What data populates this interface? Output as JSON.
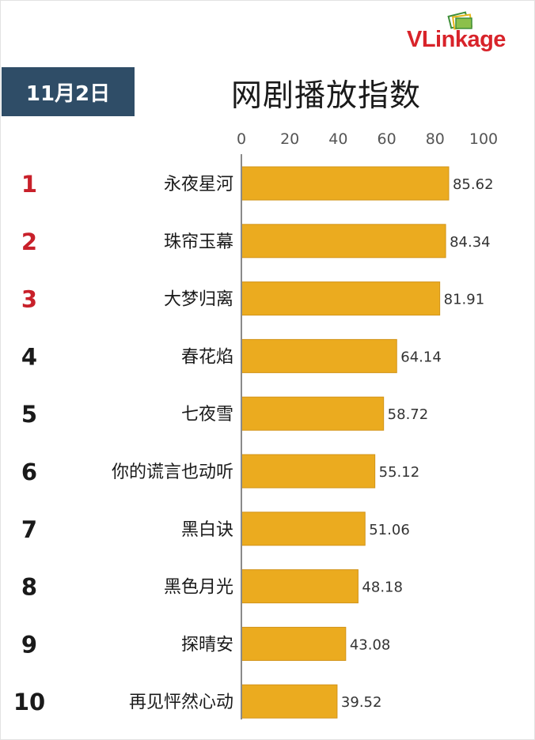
{
  "header": {
    "date": "11月2日",
    "title": "网剧播放指数",
    "logo_main": "VLink",
    "logo_sub": "age"
  },
  "colors": {
    "bar": "#ebab1f",
    "bar_edge": "#d2941a",
    "badge": "#2f4d67",
    "rank_top": "#c8202a",
    "rank_other": "#1a1a1a",
    "axis": "#8a8a8a"
  },
  "chart_data": {
    "type": "bar",
    "orientation": "horizontal",
    "title": "网剧播放指数",
    "xlim": [
      0,
      100
    ],
    "ticks": [
      0,
      20,
      40,
      60,
      80,
      100
    ],
    "tick_labels": [
      "0",
      "20",
      "40",
      "60",
      "80",
      "100"
    ],
    "ranks": [
      "1",
      "2",
      "3",
      "4",
      "5",
      "6",
      "7",
      "8",
      "9",
      "10"
    ],
    "categories": [
      "永夜星河",
      "珠帘玉幕",
      "大梦归离",
      "春花焰",
      "七夜雪",
      "你的谎言也动听",
      "黑白诀",
      "黑色月光",
      "探晴安",
      "再见怦然心动"
    ],
    "values": [
      85.62,
      84.34,
      81.91,
      64.14,
      58.72,
      55.12,
      51.06,
      48.18,
      43.08,
      39.52
    ],
    "value_labels": [
      "85.62",
      "84.34",
      "81.91",
      "64.14",
      "58.72",
      "55.12",
      "51.06",
      "48.18",
      "43.08",
      "39.52"
    ],
    "grid": false,
    "legend": "none"
  }
}
